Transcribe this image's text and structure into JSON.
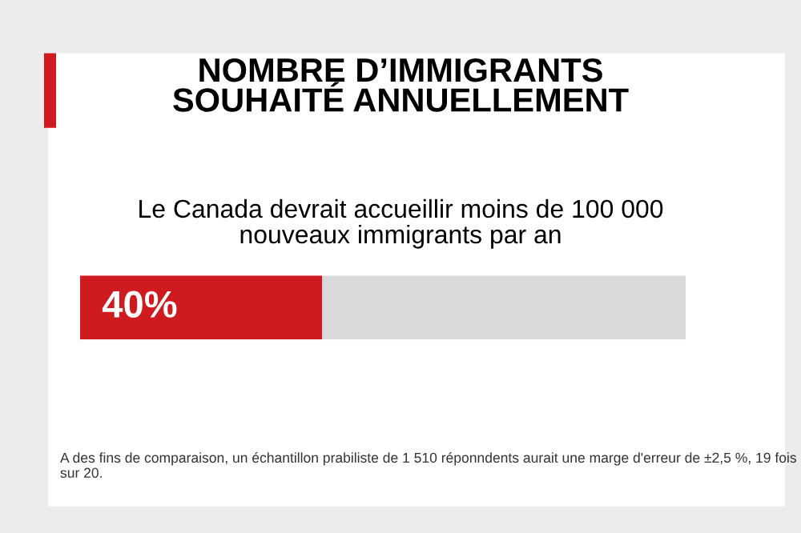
{
  "chart_data": {
    "type": "bar",
    "orientation": "horizontal",
    "stacked": true,
    "title": "NOMBRE D’IMMIGRANTS\nSOUHAITÉ ANNUELLEMENT",
    "subtitle": "Le Canada devrait accueillir moins de 100 000\nnouveaux immigrants par an",
    "categories": [
      null
    ],
    "series": [
      {
        "color": "#cf1a20",
        "values": [
          40
        ],
        "value_labels": [
          "40%"
        ]
      },
      {
        "color": "#d9d9d9",
        "values": [
          60
        ]
      }
    ],
    "xlim": [
      0,
      100
    ],
    "grid": false,
    "legend": false,
    "annotations": [
      "A des fins de comparaison, un échantillon prabiliste de 1 510 réponndents aurait une marge d'erreur de ±2,5 %, 19 fois sur 20."
    ]
  }
}
